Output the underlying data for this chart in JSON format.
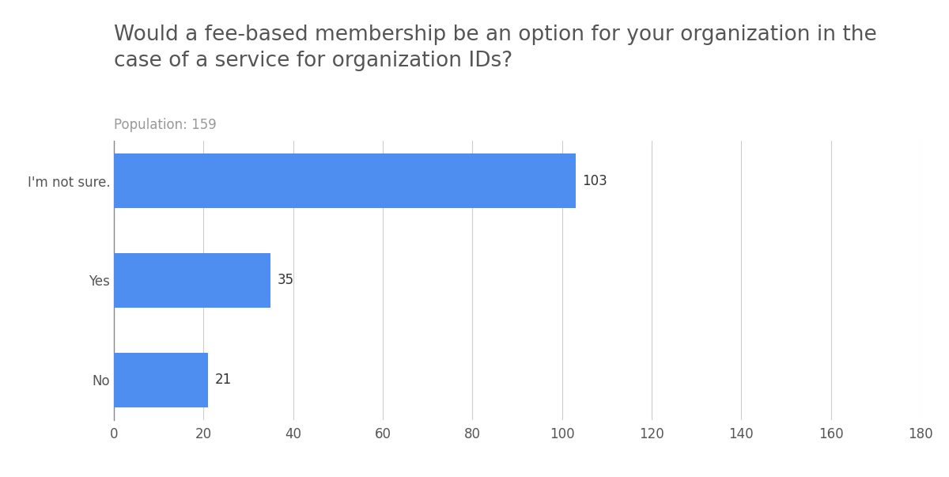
{
  "title": "Would a fee-based membership be an option for your organization in the\ncase of a service for organization IDs?",
  "subtitle": "Population: 159",
  "categories": [
    "No",
    "Yes",
    "I'm not sure."
  ],
  "values": [
    21,
    35,
    103
  ],
  "bar_color": "#4d8ef0",
  "xlim": [
    0,
    180
  ],
  "xticks": [
    0,
    20,
    40,
    60,
    80,
    100,
    120,
    140,
    160,
    180
  ],
  "title_fontsize": 19,
  "subtitle_fontsize": 12,
  "label_fontsize": 12,
  "tick_fontsize": 12,
  "value_fontsize": 12,
  "background_color": "#ffffff",
  "grid_color": "#cccccc",
  "title_color": "#555555",
  "subtitle_color": "#999999",
  "ytick_color": "#555555",
  "xtick_color": "#555555",
  "value_label_color": "#333333",
  "bar_height": 0.55
}
